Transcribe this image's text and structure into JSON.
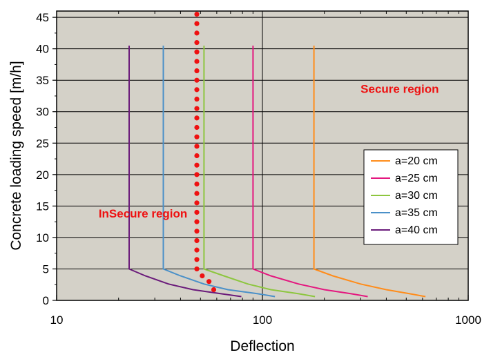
{
  "chart_data": {
    "type": "line",
    "title": "",
    "xlabel": "Deflection",
    "ylabel": "Concrete loading speed [m/h]",
    "xscale": "log",
    "xlim": [
      10,
      1000
    ],
    "ylim": [
      0,
      46
    ],
    "x_ticks": [
      10,
      100,
      1000
    ],
    "y_ticks": [
      0,
      5,
      10,
      15,
      20,
      25,
      30,
      35,
      40,
      45
    ],
    "grid": "horizontal lines every 5; vertical line at 100",
    "background": "#d4d1c8",
    "legend": {
      "placement": "right"
    },
    "series": [
      {
        "name": "a=20 cm",
        "color": "#ff8c1a",
        "points": [
          [
            178,
            40.5
          ],
          [
            178,
            5
          ],
          [
            220,
            3.9
          ],
          [
            300,
            2.6
          ],
          [
            400,
            1.7
          ],
          [
            520,
            1.05
          ],
          [
            620,
            0.6
          ]
        ]
      },
      {
        "name": "a=25 cm",
        "color": "#e4177f",
        "points": [
          [
            90,
            40.5
          ],
          [
            90,
            5
          ],
          [
            110,
            3.9
          ],
          [
            150,
            2.6
          ],
          [
            200,
            1.7
          ],
          [
            270,
            1.05
          ],
          [
            325,
            0.6
          ]
        ]
      },
      {
        "name": "a=30 cm",
        "color": "#8dc63f",
        "points": [
          [
            52,
            40.5
          ],
          [
            52,
            5
          ],
          [
            65,
            3.9
          ],
          [
            85,
            2.6
          ],
          [
            110,
            1.7
          ],
          [
            150,
            1.05
          ],
          [
            180,
            0.6
          ]
        ]
      },
      {
        "name": "a=35 cm",
        "color": "#4a90c8",
        "points": [
          [
            33,
            40.5
          ],
          [
            33,
            5
          ],
          [
            40,
            3.9
          ],
          [
            52,
            2.6
          ],
          [
            68,
            1.7
          ],
          [
            95,
            1.05
          ],
          [
            115,
            0.6
          ]
        ]
      },
      {
        "name": "a=40 cm",
        "color": "#6a1a7a",
        "points": [
          [
            22.5,
            40.5
          ],
          [
            22.5,
            5
          ],
          [
            27,
            3.9
          ],
          [
            35,
            2.6
          ],
          [
            46,
            1.7
          ],
          [
            63,
            1.05
          ],
          [
            79,
            0.6
          ]
        ]
      }
    ],
    "boundary": {
      "color": "#ee1111",
      "points": [
        [
          48,
          45.5
        ],
        [
          48,
          44
        ],
        [
          48,
          42.5
        ],
        [
          48,
          41
        ],
        [
          48,
          39.5
        ],
        [
          48,
          38
        ],
        [
          48,
          36.5
        ],
        [
          48,
          35
        ],
        [
          48,
          33.5
        ],
        [
          48,
          32
        ],
        [
          48,
          30.5
        ],
        [
          48,
          29
        ],
        [
          48,
          27.5
        ],
        [
          48,
          26
        ],
        [
          48,
          24.5
        ],
        [
          48,
          23
        ],
        [
          48,
          21.5
        ],
        [
          48,
          20
        ],
        [
          48,
          18.5
        ],
        [
          48,
          17
        ],
        [
          48,
          15.5
        ],
        [
          48,
          14
        ],
        [
          48,
          12.5
        ],
        [
          48,
          11
        ],
        [
          48,
          9.5
        ],
        [
          48,
          8
        ],
        [
          48,
          6.5
        ],
        [
          48,
          5
        ],
        [
          51,
          3.9
        ],
        [
          55,
          3
        ],
        [
          58,
          1.7
        ]
      ]
    },
    "annotations": [
      {
        "text": "Secure region",
        "x": 300,
        "y": 33,
        "color": "#ee1111"
      },
      {
        "text": "InSecure region",
        "x": 16,
        "y": 13.2,
        "color": "#ee1111"
      }
    ]
  }
}
